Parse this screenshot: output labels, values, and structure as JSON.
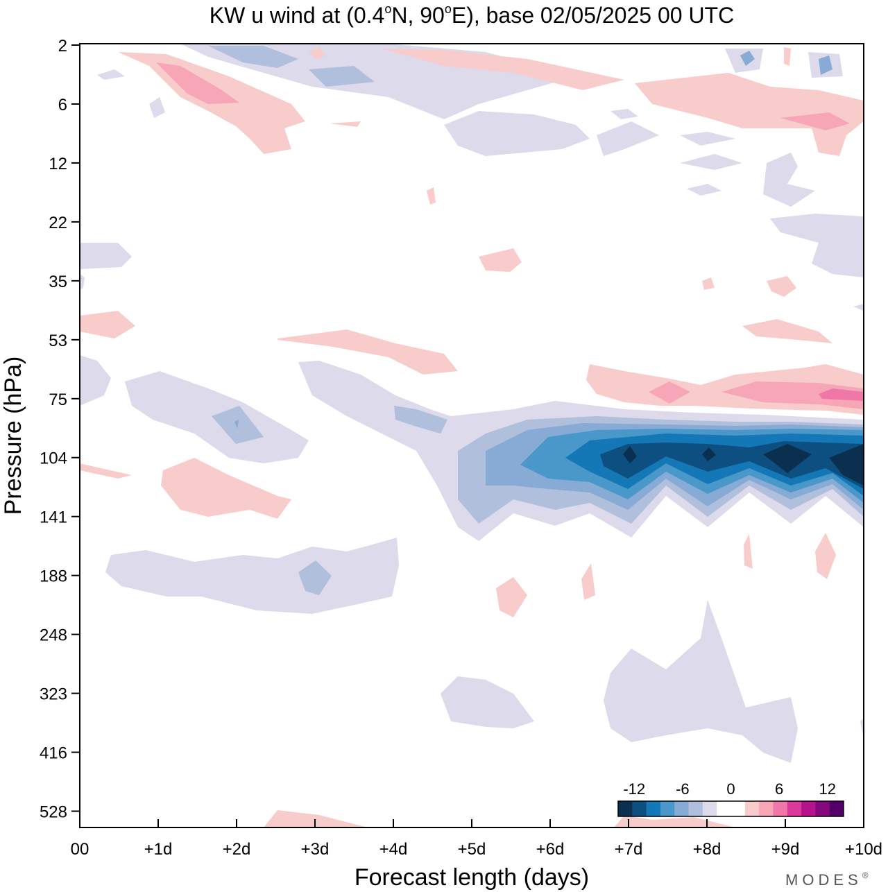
{
  "chart_data": {
    "type": "contour",
    "title_prefix": "KW u wind at (0.4",
    "title_mid": "N, 90",
    "title_suffix": "E),  base 02/05/2025  00 UTC",
    "title_degree": "o",
    "xlabel": "Forecast length (days)",
    "ylabel": "Pressure (hPa)",
    "x_ticks": [
      "00",
      "+1d",
      "+2d",
      "+3d",
      "+4d",
      "+5d",
      "+6d",
      "+7d",
      "+8d",
      "+9d",
      "+10d"
    ],
    "xlim": [
      0,
      10
    ],
    "y_ticks": [
      "2",
      "6",
      "12",
      "22",
      "35",
      "53",
      "75",
      "104",
      "141",
      "188",
      "248",
      "323",
      "416",
      "528"
    ],
    "y_scale": "pressure levels (top = 2 hPa, bottom ≈ 700 hPa)",
    "colorbar": {
      "labels": [
        "-12",
        "-6",
        "0",
        "6",
        "12"
      ],
      "label_values": [
        -12,
        -6,
        0,
        6,
        12
      ],
      "min": -14,
      "max": 14,
      "step": 2,
      "colors": [
        "#0b2f4f",
        "#0e4f82",
        "#1478b6",
        "#4a97c9",
        "#87abd4",
        "#b0bfdc",
        "#dcdaeb",
        "#ffffff",
        "#ffffff",
        "#f9cccc",
        "#f6a6b6",
        "#f078a8",
        "#dc3a9b",
        "#b5138b",
        "#86087d",
        "#55006a"
      ]
    },
    "features": [
      {
        "name": "easterly-jet-core",
        "type": "negative",
        "x_days": [
          5,
          10
        ],
        "pressure_hPa": 104,
        "min_value": -14
      },
      {
        "name": "westerly-band-upper",
        "type": "positive",
        "x_days": [
          6.5,
          10
        ],
        "pressure_hPa": 75,
        "max_value": 8
      },
      {
        "name": "stratosphere-west",
        "type": "positive",
        "x_days": [
          0.5,
          2.5
        ],
        "pressure_hPa": 4,
        "max_value": 6
      }
    ],
    "brand": "MODES",
    "brand_mark": "®"
  }
}
